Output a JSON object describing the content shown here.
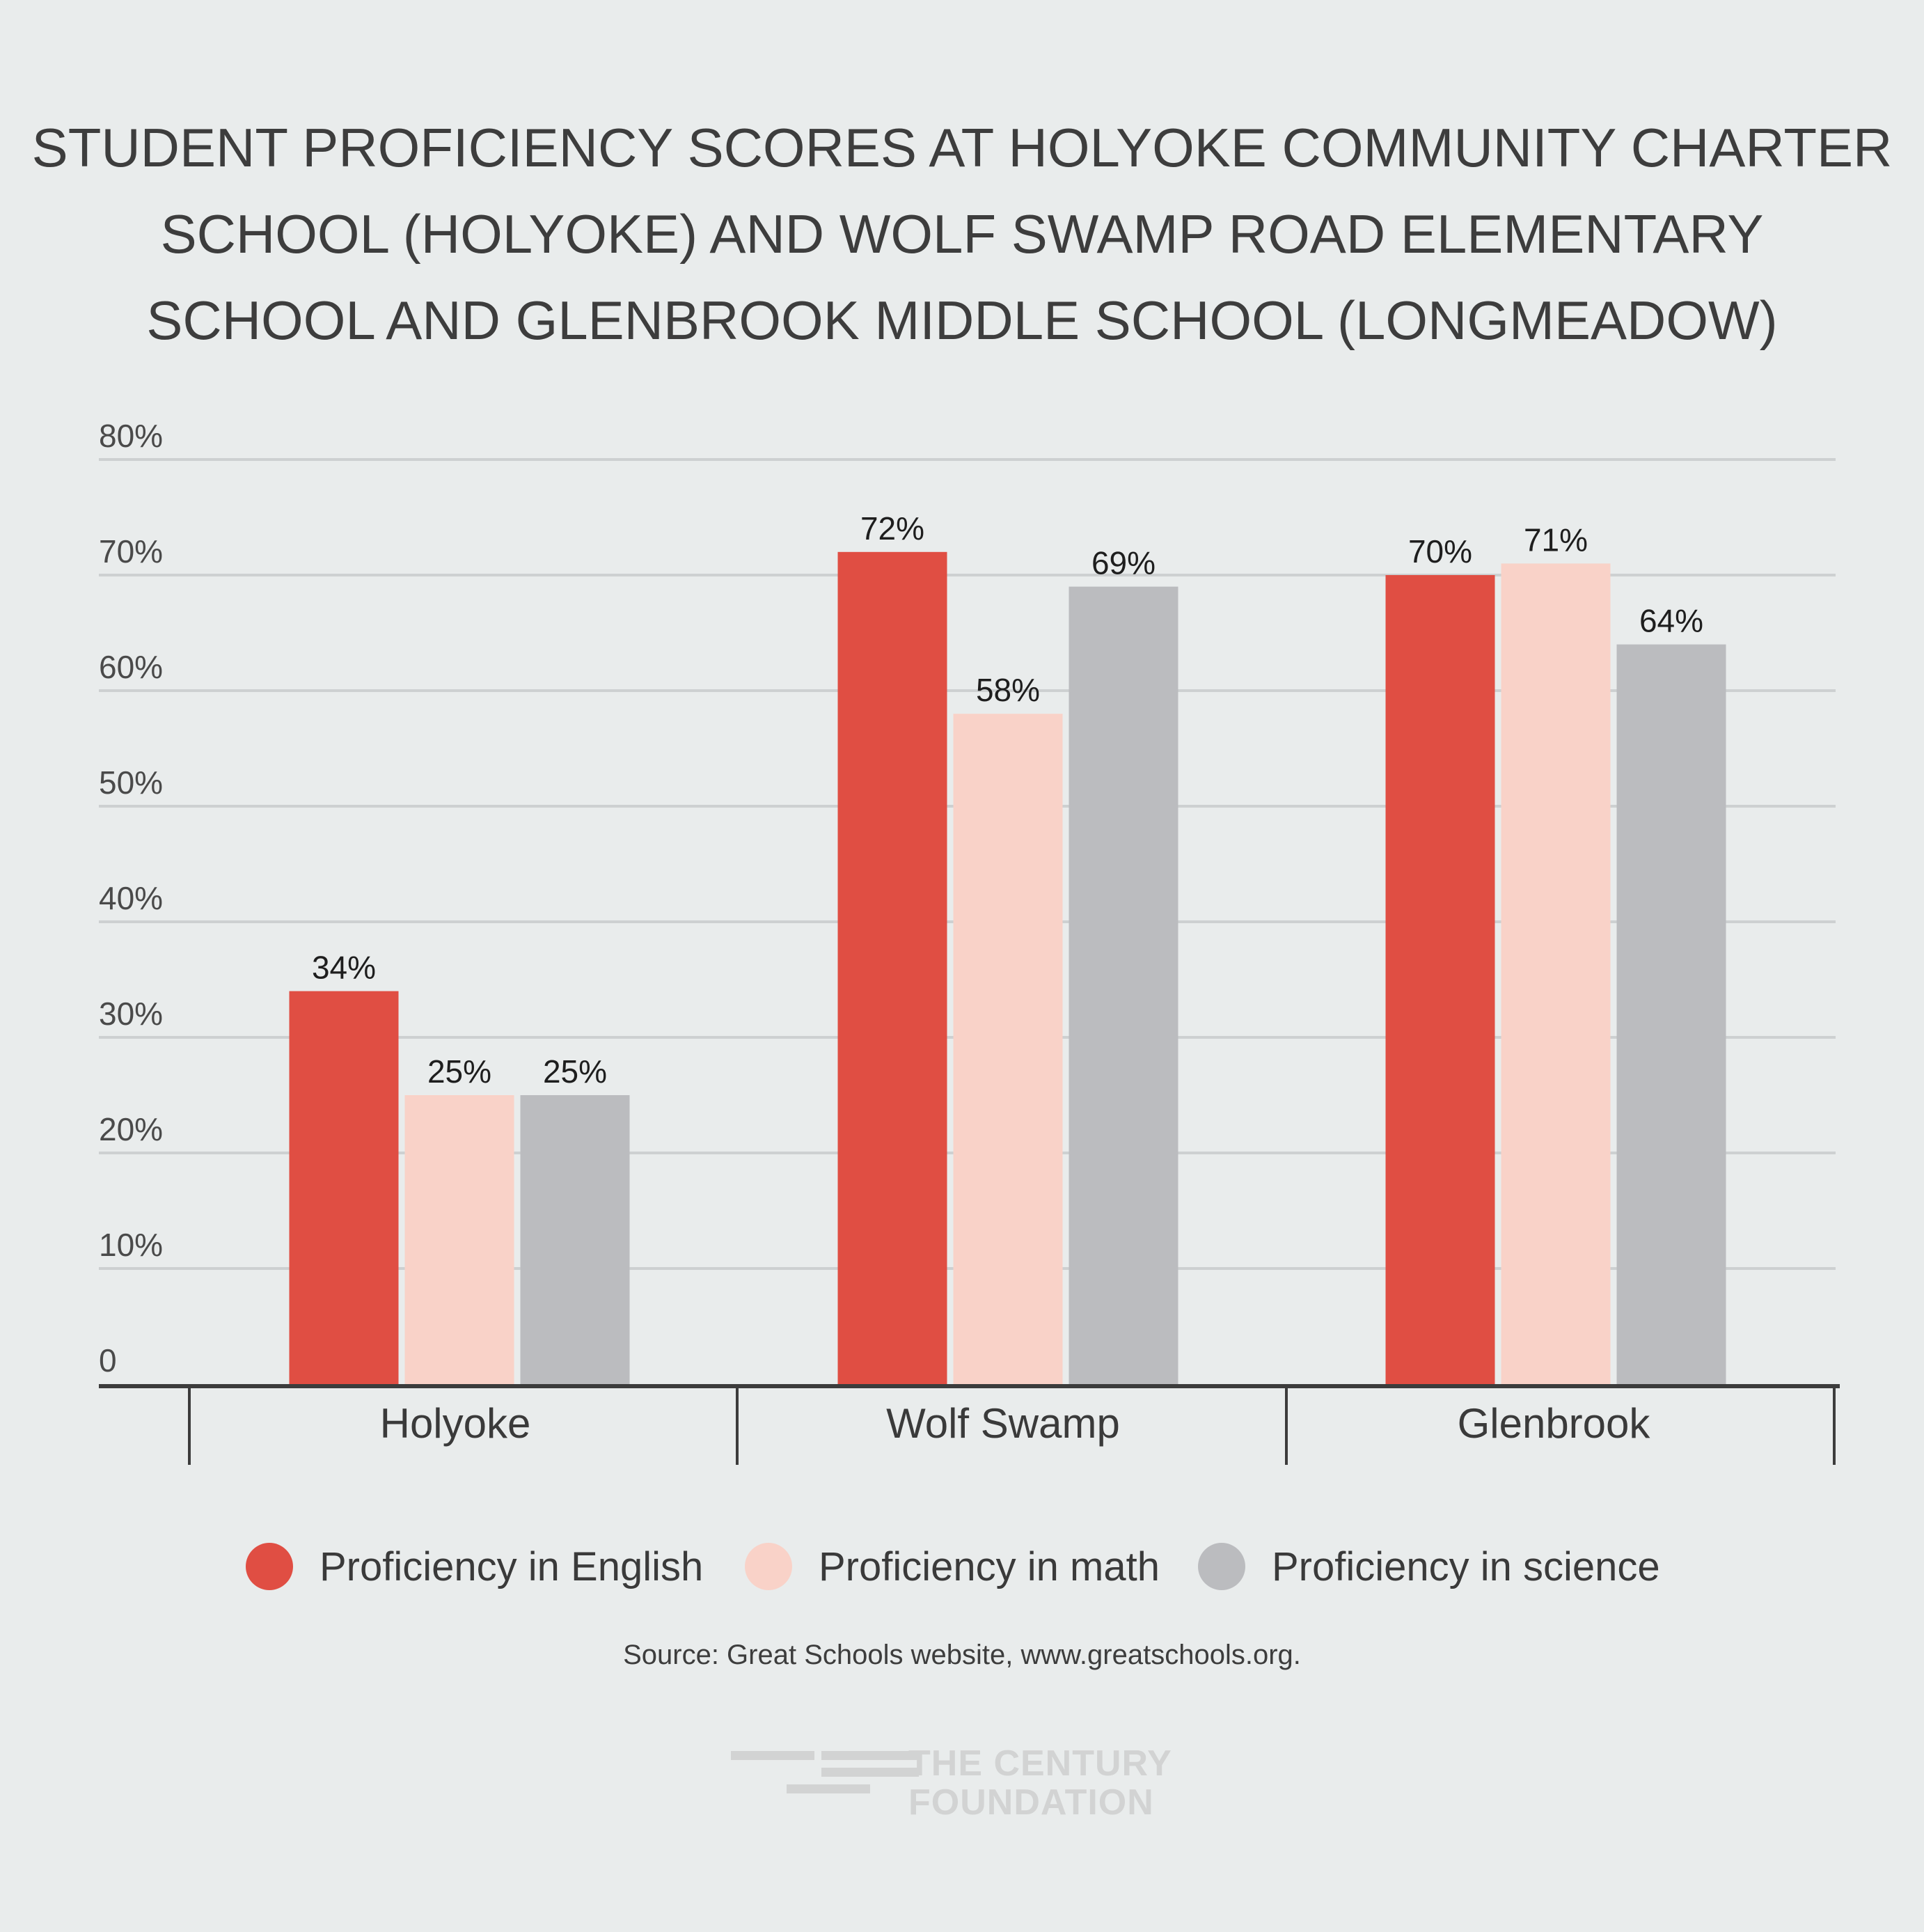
{
  "title_lines": [
    "STUDENT PROFICIENCY SCORES AT HOLYOKE COMMUNITY CHARTER",
    "SCHOOL (HOLYOKE) AND WOLF SWAMP ROAD ELEMENTARY",
    "SCHOOL AND GLENBROOK MIDDLE SCHOOL (LONGMEADOW)"
  ],
  "chart_data": {
    "type": "bar",
    "title": "STUDENT PROFICIENCY SCORES AT HOLYOKE COMMUNITY CHARTER SCHOOL (HOLYOKE) AND WOLF SWAMP ROAD ELEMENTARY SCHOOL AND GLENBROOK MIDDLE SCHOOL (LONGMEADOW)",
    "categories": [
      "Holyoke",
      "Wolf Swamp",
      "Glenbrook"
    ],
    "series": [
      {
        "name": "Proficiency in English",
        "values": [
          34,
          72,
          70
        ],
        "labels": [
          "34%",
          "72%",
          "70%"
        ],
        "color": "#e04e43"
      },
      {
        "name": "Proficiency in math",
        "values": [
          25,
          58,
          71
        ],
        "labels": [
          "25%",
          "58%",
          "71%"
        ],
        "color": "#f9d2c8"
      },
      {
        "name": "Proficiency in science",
        "values": [
          25,
          69,
          64
        ],
        "labels": [
          "25%",
          "69%",
          "64%"
        ],
        "color": "#bbbcbf"
      }
    ],
    "ylim": [
      0,
      80
    ],
    "yticks": [
      0,
      10,
      20,
      30,
      40,
      50,
      60,
      70,
      80
    ],
    "ytick_labels": [
      "0",
      "10%",
      "20%",
      "30%",
      "40%",
      "50%",
      "60%",
      "70%",
      "80%"
    ],
    "grid": true,
    "legend_position": "bottom"
  },
  "source": "Source: Great Schools website, www.greatschools.org.",
  "logo": {
    "line1": "THE CENTURY",
    "line2": "FOUNDATION"
  },
  "colors": {
    "background": "#e9ecec",
    "grid": "#cdd0d1",
    "axis": "#3c3c3c",
    "logo": "#d2d3d3"
  }
}
